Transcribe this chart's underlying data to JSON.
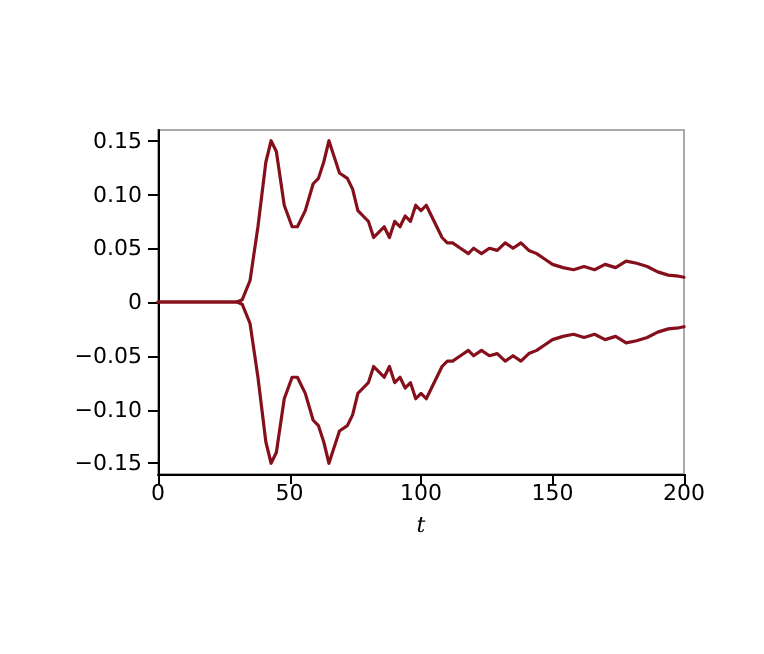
{
  "chart_data": {
    "type": "line",
    "xlabel": "t",
    "x": [
      0,
      30,
      32,
      35,
      38,
      41,
      43,
      45,
      48,
      51,
      53,
      56,
      59,
      61,
      63,
      65,
      67,
      69,
      72,
      74,
      76,
      78,
      80,
      82,
      84,
      86,
      88,
      90,
      92,
      94,
      96,
      98,
      100,
      102,
      104,
      106,
      108,
      110,
      112,
      115,
      118,
      120,
      123,
      126,
      129,
      132,
      135,
      138,
      141,
      144,
      147,
      150,
      154,
      158,
      162,
      166,
      170,
      174,
      178,
      182,
      186,
      190,
      194,
      198,
      200
    ],
    "series": [
      {
        "color": "#85101c",
        "values": [
          0,
          0,
          0.002,
          0.02,
          0.07,
          0.13,
          0.15,
          0.14,
          0.09,
          0.07,
          0.07,
          0.085,
          0.11,
          0.115,
          0.13,
          0.15,
          0.135,
          0.12,
          0.115,
          0.105,
          0.085,
          0.08,
          0.075,
          0.06,
          0.065,
          0.07,
          0.06,
          0.075,
          0.07,
          0.08,
          0.075,
          0.09,
          0.085,
          0.09,
          0.08,
          0.07,
          0.06,
          0.055,
          0.055,
          0.05,
          0.045,
          0.05,
          0.045,
          0.05,
          0.048,
          0.055,
          0.05,
          0.055,
          0.048,
          0.045,
          0.04,
          0.035,
          0.032,
          0.03,
          0.033,
          0.03,
          0.035,
          0.032,
          0.038,
          0.036,
          0.033,
          0.028,
          0.025,
          0.024,
          0.023
        ]
      },
      {
        "color": "#85101c",
        "values": [
          0,
          0,
          -0.002,
          -0.02,
          -0.07,
          -0.13,
          -0.15,
          -0.14,
          -0.09,
          -0.07,
          -0.07,
          -0.085,
          -0.11,
          -0.115,
          -0.13,
          -0.15,
          -0.135,
          -0.12,
          -0.115,
          -0.105,
          -0.085,
          -0.08,
          -0.075,
          -0.06,
          -0.065,
          -0.07,
          -0.06,
          -0.075,
          -0.07,
          -0.08,
          -0.075,
          -0.09,
          -0.085,
          -0.09,
          -0.08,
          -0.07,
          -0.06,
          -0.055,
          -0.055,
          -0.05,
          -0.045,
          -0.05,
          -0.045,
          -0.05,
          -0.048,
          -0.055,
          -0.05,
          -0.055,
          -0.048,
          -0.045,
          -0.04,
          -0.035,
          -0.032,
          -0.03,
          -0.033,
          -0.03,
          -0.035,
          -0.032,
          -0.038,
          -0.036,
          -0.033,
          -0.028,
          -0.025,
          -0.024,
          -0.023
        ]
      }
    ],
    "xlim": [
      0,
      200
    ],
    "xticks": [
      0,
      50,
      100,
      150,
      200
    ],
    "ylim": [
      -0.16,
      0.16
    ],
    "yticks": [
      {
        "value": -0.15,
        "label": "−0.15"
      },
      {
        "value": -0.1,
        "label": "−0.10"
      },
      {
        "value": -0.05,
        "label": "−0.05"
      },
      0,
      {
        "value": 0.05,
        "label": "0.05"
      },
      {
        "value": 0.1,
        "label": "0.10"
      },
      0.15
    ],
    "grid": false,
    "marker": "none",
    "line_style": "solid"
  }
}
